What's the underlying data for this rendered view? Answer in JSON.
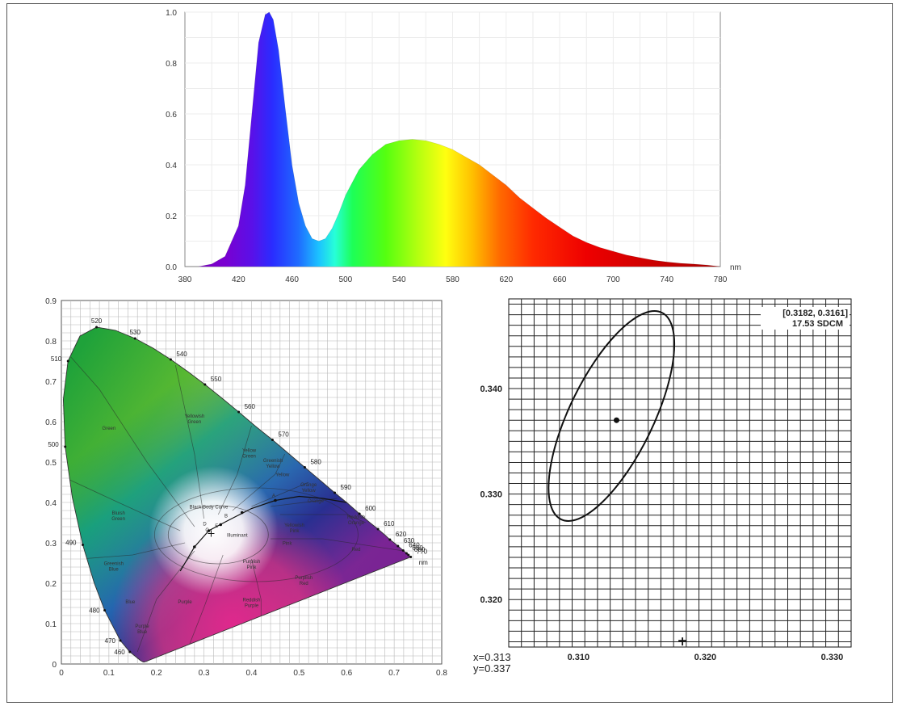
{
  "chart_data": [
    {
      "type": "area",
      "xlabel": "nm",
      "ylabel": "",
      "xlim": [
        380,
        780
      ],
      "ylim": [
        0,
        1.0
      ],
      "xticks": [
        "380",
        "420",
        "460",
        "500",
        "540",
        "580",
        "620",
        "660",
        "700",
        "740",
        "780"
      ],
      "yticks": [
        "0.0",
        "0.2",
        "0.4",
        "0.6",
        "0.8",
        "1.0"
      ],
      "grid": true,
      "fill": "spectral rainbow (violet to red)",
      "x": [
        380,
        390,
        400,
        410,
        420,
        425,
        430,
        435,
        440,
        443,
        446,
        450,
        455,
        460,
        465,
        470,
        475,
        480,
        485,
        490,
        495,
        500,
        510,
        520,
        530,
        540,
        550,
        560,
        570,
        580,
        590,
        600,
        610,
        620,
        630,
        640,
        650,
        660,
        670,
        680,
        690,
        700,
        710,
        720,
        730,
        740,
        750,
        760,
        770,
        780
      ],
      "y": [
        0.0,
        0.0,
        0.01,
        0.04,
        0.16,
        0.32,
        0.6,
        0.88,
        0.99,
        1.0,
        0.97,
        0.85,
        0.62,
        0.4,
        0.25,
        0.16,
        0.11,
        0.1,
        0.11,
        0.15,
        0.21,
        0.28,
        0.38,
        0.44,
        0.48,
        0.495,
        0.5,
        0.495,
        0.48,
        0.46,
        0.43,
        0.4,
        0.36,
        0.32,
        0.27,
        0.23,
        0.19,
        0.155,
        0.12,
        0.095,
        0.075,
        0.06,
        0.045,
        0.035,
        0.025,
        0.018,
        0.013,
        0.01,
        0.006,
        0.0
      ]
    },
    {
      "type": "scatter",
      "subtype": "CIE 1931 chromaticity diagram",
      "xlim": [
        0,
        0.8
      ],
      "ylim": [
        0,
        0.9
      ],
      "xticks": [
        "0",
        "0.1",
        "0.2",
        "0.3",
        "0.4",
        "0.5",
        "0.6",
        "0.7",
        "0.8"
      ],
      "yticks": [
        "0",
        "0.1",
        "0.2",
        "0.3",
        "0.4",
        "0.5",
        "0.6",
        "0.7",
        "0.8",
        "0.9"
      ],
      "grid": true,
      "locus_labels": [
        {
          "nm": "460",
          "x": 0.144,
          "y": 0.03
        },
        {
          "nm": "470",
          "x": 0.124,
          "y": 0.058
        },
        {
          "nm": "480",
          "x": 0.091,
          "y": 0.133
        },
        {
          "nm": "490",
          "x": 0.045,
          "y": 0.295
        },
        {
          "nm": "500",
          "x": 0.008,
          "y": 0.538
        },
        {
          "nm": "510",
          "x": 0.014,
          "y": 0.75
        },
        {
          "nm": "520",
          "x": 0.074,
          "y": 0.834
        },
        {
          "nm": "530",
          "x": 0.155,
          "y": 0.806
        },
        {
          "nm": "540",
          "x": 0.23,
          "y": 0.754
        },
        {
          "nm": "550",
          "x": 0.302,
          "y": 0.692
        },
        {
          "nm": "560",
          "x": 0.373,
          "y": 0.624
        },
        {
          "nm": "570",
          "x": 0.444,
          "y": 0.555
        },
        {
          "nm": "580",
          "x": 0.512,
          "y": 0.487
        },
        {
          "nm": "590",
          "x": 0.575,
          "y": 0.424
        },
        {
          "nm": "600",
          "x": 0.627,
          "y": 0.372
        },
        {
          "nm": "610",
          "x": 0.666,
          "y": 0.334
        },
        {
          "nm": "620",
          "x": 0.691,
          "y": 0.308
        },
        {
          "nm": "630",
          "x": 0.708,
          "y": 0.292
        },
        {
          "nm": "640",
          "x": 0.719,
          "y": 0.281
        },
        {
          "nm": "650",
          "x": 0.726,
          "y": 0.274
        },
        {
          "nm": "660",
          "x": 0.73,
          "y": 0.27
        },
        {
          "nm": "770",
          "x": 0.735,
          "y": 0.265
        },
        {
          "nm": "nm",
          "x": 0.735,
          "y": 0.25
        }
      ],
      "region_labels": [
        {
          "text": "Green",
          "x": 0.1,
          "y": 0.58
        },
        {
          "text": "Yellowish Green",
          "x": 0.28,
          "y": 0.61
        },
        {
          "text": "Yellow Green",
          "x": 0.395,
          "y": 0.525
        },
        {
          "text": "Greenish Yellow",
          "x": 0.445,
          "y": 0.5
        },
        {
          "text": "Yellow",
          "x": 0.465,
          "y": 0.465
        },
        {
          "text": "Orange Yellow",
          "x": 0.52,
          "y": 0.44
        },
        {
          "text": "Bluish Green",
          "x": 0.12,
          "y": 0.37
        },
        {
          "text": "Black Body Curve",
          "x": 0.31,
          "y": 0.385
        },
        {
          "text": "Orange",
          "x": 0.535,
          "y": 0.4
        },
        {
          "text": "Reddish Orange",
          "x": 0.62,
          "y": 0.36
        },
        {
          "text": "Yellowish Pink",
          "x": 0.49,
          "y": 0.34
        },
        {
          "text": "Pink",
          "x": 0.475,
          "y": 0.295
        },
        {
          "text": "Red",
          "x": 0.62,
          "y": 0.28
        },
        {
          "text": "Greenish Blue",
          "x": 0.11,
          "y": 0.245
        },
        {
          "text": "Purplish Pink",
          "x": 0.4,
          "y": 0.25
        },
        {
          "text": "Purplish Red",
          "x": 0.51,
          "y": 0.21
        },
        {
          "text": "Blue",
          "x": 0.145,
          "y": 0.15
        },
        {
          "text": "Purple",
          "x": 0.26,
          "y": 0.15
        },
        {
          "text": "Reddish Purple",
          "x": 0.4,
          "y": 0.155
        },
        {
          "text": "Purple Blue",
          "x": 0.17,
          "y": 0.09
        }
      ],
      "planckian_points": [
        "A",
        "B",
        "C",
        "D",
        "E"
      ],
      "marker_label": "Illuminant"
    },
    {
      "type": "scatter",
      "subtype": "MacAdam ellipse",
      "xlim": [
        0.3045,
        0.3315
      ],
      "ylim": [
        0.3155,
        0.3485
      ],
      "xticks": [
        "0.310",
        "0.320",
        "0.330"
      ],
      "yticks": [
        "0.320",
        "0.330",
        "0.340"
      ],
      "grid": true,
      "annotation_line1": "[0.3182, 0.3161]",
      "annotation_line2": "17.53 SDCM",
      "point": {
        "x": 0.313,
        "y": 0.337
      },
      "ellipse": {
        "cx": 0.3126,
        "cy": 0.3374,
        "rx": 0.0033,
        "ry": 0.0109,
        "tilt_deg": 26
      },
      "marker": {
        "x": 0.3182,
        "y": 0.3161
      },
      "readout_x": "x=0.313",
      "readout_y": "y=0.337"
    }
  ]
}
